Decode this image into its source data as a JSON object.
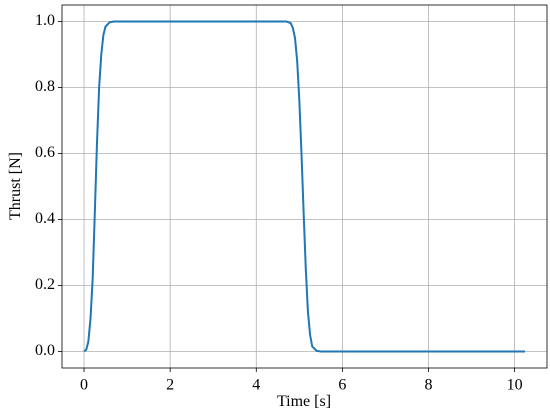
{
  "chart_data": {
    "type": "line",
    "x_label": "Time [s]",
    "y_label": "Thrust [N]",
    "series": [
      {
        "name": "Thrust",
        "color": "#1f77b4",
        "x": [
          0,
          0.05,
          0.1,
          0.15,
          0.2,
          0.25,
          0.3,
          0.35,
          0.4,
          0.45,
          0.5,
          0.6,
          0.7,
          4.7,
          4.8,
          4.85,
          4.9,
          4.95,
          5.0,
          5.05,
          5.1,
          5.15,
          5.2,
          5.25,
          5.3,
          5.4,
          5.5,
          10.24
        ],
        "values": [
          0,
          0.005,
          0.03,
          0.1,
          0.22,
          0.42,
          0.63,
          0.8,
          0.9,
          0.96,
          0.985,
          0.998,
          1.0,
          1.0,
          0.995,
          0.98,
          0.95,
          0.88,
          0.76,
          0.6,
          0.42,
          0.25,
          0.12,
          0.05,
          0.015,
          0.002,
          0,
          0
        ]
      }
    ],
    "xlim": [
      -0.512,
      10.752
    ],
    "ylim": [
      -0.05,
      1.05
    ],
    "xticks": [
      0,
      2,
      4,
      6,
      8,
      10
    ],
    "yticks": [
      {
        "value": 0,
        "label": "0.0"
      },
      {
        "value": 0.2,
        "label": "0.2"
      },
      {
        "value": 0.4,
        "label": "0.4"
      },
      {
        "value": 0.6,
        "label": "0.6"
      },
      {
        "value": 0.8,
        "label": "0.8"
      },
      {
        "value": 1,
        "label": "1.0"
      }
    ],
    "grid": true
  }
}
